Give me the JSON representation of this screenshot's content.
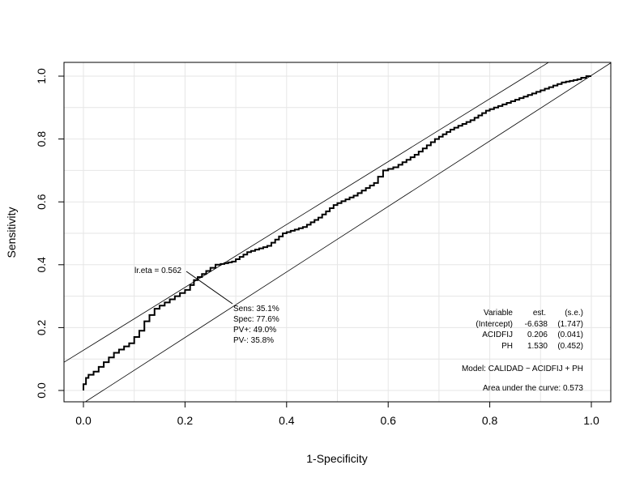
{
  "chart_data": {
    "type": "line",
    "title": "",
    "xlabel": "1-Specificity",
    "ylabel": "Sensitivity",
    "xlim": [
      -0.04,
      1.04
    ],
    "ylim": [
      -0.04,
      1.04
    ],
    "xticks": [
      "0.0",
      "0.2",
      "0.4",
      "0.6",
      "0.8",
      "1.0"
    ],
    "yticks": [
      "0.0",
      "0.2",
      "0.4",
      "0.6",
      "0.8",
      "1.0"
    ],
    "grid": true,
    "series": [
      {
        "name": "ROC",
        "x": [
          0,
          0.005,
          0.01,
          0.02,
          0.03,
          0.05,
          0.07,
          0.09,
          0.1,
          0.12,
          0.13,
          0.15,
          0.17,
          0.19,
          0.21,
          0.225,
          0.25,
          0.27,
          0.3,
          0.33,
          0.37,
          0.4,
          0.44,
          0.47,
          0.5,
          0.54,
          0.58,
          0.6,
          0.62,
          0.66,
          0.7,
          0.73,
          0.77,
          0.8,
          0.85,
          0.9,
          0.95,
          0.98,
          1
        ],
        "y": [
          0,
          0.02,
          0.04,
          0.05,
          0.06,
          0.09,
          0.12,
          0.14,
          0.15,
          0.19,
          0.22,
          0.26,
          0.28,
          0.3,
          0.32,
          0.351,
          0.38,
          0.4,
          0.41,
          0.44,
          0.46,
          0.5,
          0.52,
          0.55,
          0.59,
          0.62,
          0.66,
          0.7,
          0.71,
          0.75,
          0.8,
          0.83,
          0.86,
          0.89,
          0.92,
          0.95,
          0.98,
          0.99,
          1
        ]
      }
    ],
    "reference_lines": [
      {
        "x": [
          -0.04,
          0.916
        ],
        "y": [
          0.088,
          1.044
        ]
      },
      {
        "x": [
          0.0,
          1.04
        ],
        "y": [
          -0.04,
          1.044
        ]
      }
    ],
    "annotations": {
      "optimal_point": {
        "x": 0.224,
        "y": 0.351
      },
      "lr_eta": "lr.eta = 0.562",
      "stats": [
        "Sens: 35.1%",
        "Spec: 77.6%",
        "PV+: 49.0%",
        "PV-: 35.8%"
      ],
      "table_header": [
        "Variable",
        "est.",
        "(s.e.)"
      ],
      "table_rows": [
        [
          "(Intercept)",
          "-6.638",
          "(1.747)"
        ],
        [
          "ACIDFIJ",
          "0.206",
          "(0.041)"
        ],
        [
          "PH",
          "1.530",
          "(0.452)"
        ]
      ],
      "model": "Model:  CALIDAD ~ ACIDFIJ + PH",
      "auc": "Area under the curve: 0.573"
    }
  }
}
